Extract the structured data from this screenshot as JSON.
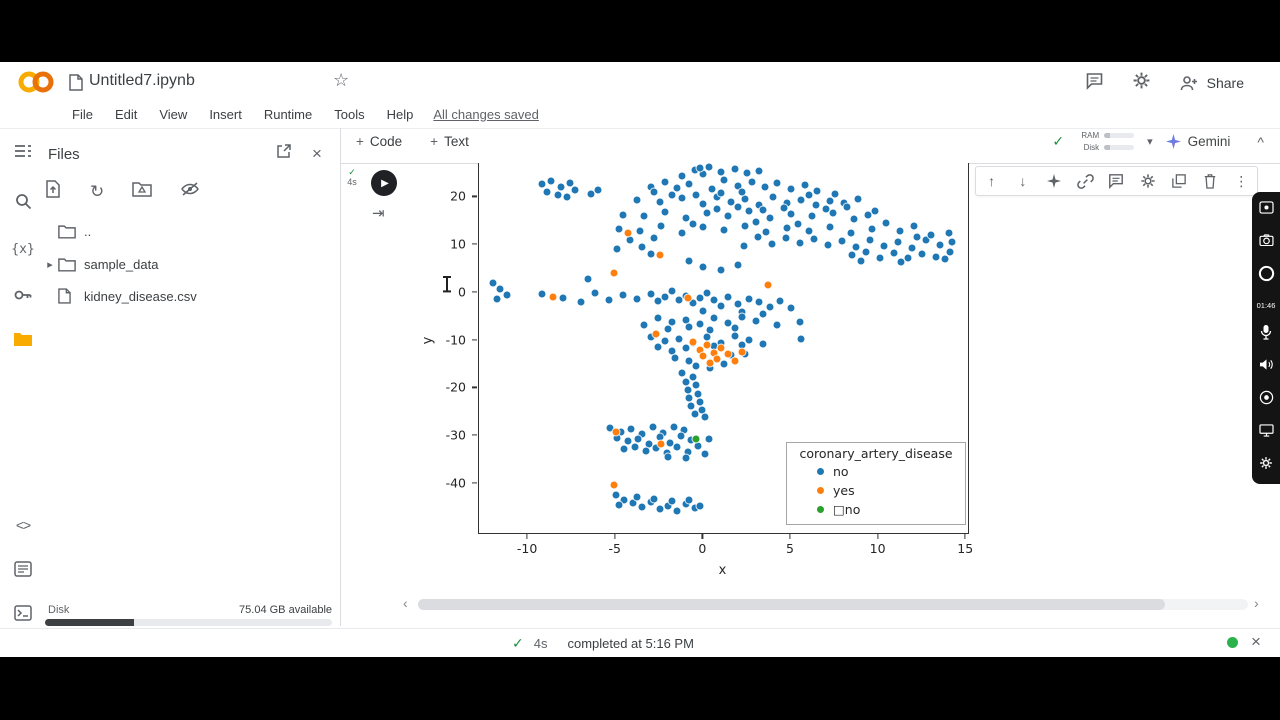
{
  "icons": {
    "play": "▶",
    "star": "☆",
    "check": "✓",
    "caret_down": "▾",
    "caret_up": "^",
    "row_chevron": "▸",
    "more_vert": "⋮",
    "arrow_up": "↑",
    "arrow_down": "↓",
    "close": "×",
    "prev": "‹",
    "next": "›",
    "refresh": "↻",
    "code": "<>",
    "braces": "{x}",
    "output_toggle": "⇥",
    "plus": "+"
  },
  "header": {
    "doc_title": "Untitled7.ipynb",
    "menus": [
      "File",
      "Edit",
      "View",
      "Insert",
      "Runtime",
      "Tools",
      "Help"
    ],
    "changes_saved": "All changes saved",
    "share_label": "Share"
  },
  "toolbar": {
    "add_code": "Code",
    "add_text": "Text",
    "ram": "RAM",
    "disk": "Disk",
    "gemini": "Gemini"
  },
  "sidebar": {
    "files_title": "Files",
    "items": [
      {
        "label": ".."
      },
      {
        "label": "sample_data"
      },
      {
        "label": "kidney_disease.csv"
      }
    ],
    "disk_label": "Disk",
    "disk_available": "75.04 GB available",
    "disk_used_percent": 31
  },
  "cell": {
    "exec_time": "4s"
  },
  "recorder": {
    "elapsed": "01:46"
  },
  "statusbar": {
    "exec_time": "4s",
    "completed_text": "completed at 5:16 PM"
  },
  "chart_data": {
    "type": "scatter",
    "title": "",
    "xlabel": "x",
    "ylabel": "y",
    "xlim": [
      -12.8,
      15.1
    ],
    "ylim": [
      -50.5,
      27.0
    ],
    "xticks": [
      -10,
      -5,
      0,
      5,
      10,
      15
    ],
    "yticks": [
      20,
      10,
      0,
      -10,
      -20,
      -30,
      -40
    ],
    "grid": false,
    "legend": {
      "title": "coronary_artery_disease",
      "position": "lower right",
      "entries": [
        {
          "label": "no",
          "color": "#1f77b4"
        },
        {
          "label": "yes",
          "color": "#ff7f0e"
        },
        {
          "label": "□no",
          "color": "#2ca02c"
        }
      ]
    },
    "series": [
      {
        "name": "no",
        "color": "#1f77b4",
        "points": [
          [
            -9.2,
            22.5
          ],
          [
            -8.7,
            23.2
          ],
          [
            -8.1,
            22
          ],
          [
            -7.6,
            22.8
          ],
          [
            -8.9,
            21
          ],
          [
            -7.3,
            21.3
          ],
          [
            -8.3,
            20.2
          ],
          [
            -7.8,
            19.8
          ],
          [
            -6.4,
            20.5
          ],
          [
            -6,
            21.4
          ],
          [
            -0.5,
            25.5
          ],
          [
            0.3,
            26.2
          ],
          [
            1,
            25.2
          ],
          [
            1.8,
            25.8
          ],
          [
            0,
            24.6
          ],
          [
            2.5,
            24.9
          ],
          [
            -1.2,
            24.2
          ],
          [
            3.2,
            25.3
          ],
          [
            -0.2,
            26
          ],
          [
            -3,
            22
          ],
          [
            -2.2,
            23.1
          ],
          [
            -1.5,
            21.8
          ],
          [
            -0.8,
            22.6
          ],
          [
            0.5,
            21.5
          ],
          [
            1.2,
            23.4
          ],
          [
            2,
            22.2
          ],
          [
            2.8,
            23
          ],
          [
            3.5,
            21.9
          ],
          [
            4.2,
            22.8
          ],
          [
            5,
            21.6
          ],
          [
            5.8,
            22.4
          ],
          [
            6.5,
            21.2
          ],
          [
            -2.8,
            20.9
          ],
          [
            -1.8,
            20.3
          ],
          [
            -3.8,
            19.2
          ],
          [
            -2.5,
            18.8
          ],
          [
            -1.2,
            19.6
          ],
          [
            0,
            18.5
          ],
          [
            0.8,
            19.9
          ],
          [
            1.6,
            18.9
          ],
          [
            2.4,
            19.5
          ],
          [
            3.2,
            18.3
          ],
          [
            4,
            19.8
          ],
          [
            4.8,
            18.7
          ],
          [
            5.6,
            19.3
          ],
          [
            6.4,
            18.2
          ],
          [
            7.2,
            19
          ],
          [
            8,
            18.6
          ],
          [
            8.8,
            19.4
          ],
          [
            -0.4,
            20.4
          ],
          [
            1,
            20.8
          ],
          [
            2.2,
            21
          ],
          [
            6,
            20.2
          ],
          [
            7.5,
            20.6
          ],
          [
            -4.6,
            16.2
          ],
          [
            -3.4,
            15.8
          ],
          [
            -2.2,
            16.8
          ],
          [
            -1,
            15.4
          ],
          [
            0.2,
            16.5
          ],
          [
            1.4,
            15.9
          ],
          [
            2.6,
            16.9
          ],
          [
            3.8,
            15.5
          ],
          [
            5,
            16.4
          ],
          [
            6.2,
            15.8
          ],
          [
            7.4,
            16.6
          ],
          [
            8.6,
            15.3
          ],
          [
            9.4,
            16.1
          ],
          [
            0.8,
            17.4
          ],
          [
            2,
            17.8
          ],
          [
            3.4,
            17.2
          ],
          [
            4.6,
            17.6
          ],
          [
            7,
            17.3
          ],
          [
            8.2,
            17.8
          ],
          [
            9.8,
            17
          ],
          [
            -4.8,
            13.2
          ],
          [
            -3.6,
            12.8
          ],
          [
            -2.4,
            13.8
          ],
          [
            -1.2,
            12.4
          ],
          [
            0,
            13.5
          ],
          [
            1.2,
            12.9
          ],
          [
            2.4,
            13.9
          ],
          [
            3.6,
            12.5
          ],
          [
            4.8,
            13.4
          ],
          [
            6,
            12.8
          ],
          [
            7.2,
            13.6
          ],
          [
            8.4,
            12.3
          ],
          [
            9.6,
            13.1
          ],
          [
            10.4,
            14.4
          ],
          [
            11.2,
            12.8
          ],
          [
            12,
            13.8
          ],
          [
            5.4,
            14.2
          ],
          [
            3,
            14.6
          ],
          [
            -0.6,
            14.3
          ],
          [
            5.5,
            10.2
          ],
          [
            6.3,
            11
          ],
          [
            7.1,
            9.8
          ],
          [
            7.9,
            10.6
          ],
          [
            8.7,
            9.4
          ],
          [
            9.5,
            10.8
          ],
          [
            10.3,
            9.6
          ],
          [
            11.1,
            10.4
          ],
          [
            11.9,
            9.2
          ],
          [
            12.7,
            10.9
          ],
          [
            13.5,
            9.9
          ],
          [
            14.2,
            10.5
          ],
          [
            4.7,
            11.3
          ],
          [
            3.9,
            10.1
          ],
          [
            3.1,
            11.5
          ],
          [
            2.3,
            9.7
          ],
          [
            13,
            12
          ],
          [
            12.2,
            11.4
          ],
          [
            14,
            12.3
          ],
          [
            -4.2,
            10.8
          ],
          [
            -3.5,
            9.5
          ],
          [
            -2.8,
            11.2
          ],
          [
            -4.9,
            8.9
          ],
          [
            8.5,
            7.8
          ],
          [
            9.3,
            8.4
          ],
          [
            10.1,
            7.2
          ],
          [
            10.9,
            8.2
          ],
          [
            11.7,
            7
          ],
          [
            12.5,
            8
          ],
          [
            13.3,
            7.4
          ],
          [
            14.1,
            8.3
          ],
          [
            9,
            6.5
          ],
          [
            11.3,
            6.2
          ],
          [
            13.8,
            6.8
          ],
          [
            -3,
            8
          ],
          [
            0,
            5.2
          ],
          [
            1,
            4.6
          ],
          [
            2,
            5.6
          ],
          [
            -0.8,
            6.4
          ],
          [
            -12,
            1.8
          ],
          [
            -11.6,
            0.6
          ],
          [
            -11.2,
            -0.6
          ],
          [
            -11.8,
            -1.5
          ],
          [
            -9.2,
            -0.4
          ],
          [
            -8,
            -1.3
          ],
          [
            -7,
            -2.2
          ],
          [
            -6.6,
            2.6
          ],
          [
            -6.2,
            -0.2
          ],
          [
            -5.4,
            -1.8
          ],
          [
            -4.6,
            -0.6
          ],
          [
            -3.8,
            -1.4
          ],
          [
            -3,
            -0.4
          ],
          [
            -2.6,
            -2
          ],
          [
            -2.2,
            -1
          ],
          [
            -1.8,
            0.2
          ],
          [
            -1.4,
            -1.6
          ],
          [
            -1,
            -0.8
          ],
          [
            -0.6,
            -2.4
          ],
          [
            -0.2,
            -1.2
          ],
          [
            0.2,
            -0.2
          ],
          [
            0.6,
            -1.8
          ],
          [
            1,
            -3
          ],
          [
            1.4,
            -1
          ],
          [
            2,
            -2.6
          ],
          [
            2.6,
            -1.4
          ],
          [
            3.2,
            -2.2
          ],
          [
            3.8,
            -3.2
          ],
          [
            4.4,
            -2
          ],
          [
            5,
            -3.4
          ],
          [
            2.2,
            -4.2
          ],
          [
            3.4,
            -4.6
          ],
          [
            0,
            -4
          ],
          [
            -2.6,
            -5.5
          ],
          [
            -1.8,
            -6.3
          ],
          [
            -1,
            -5.8
          ],
          [
            -0.2,
            -6.8
          ],
          [
            0.6,
            -5.4
          ],
          [
            1.4,
            -6.6
          ],
          [
            2.2,
            -5.2
          ],
          [
            3,
            -6
          ],
          [
            -3.4,
            -6.9
          ],
          [
            -2,
            -7.8
          ],
          [
            -0.8,
            -7.4
          ],
          [
            0.4,
            -8
          ],
          [
            1.8,
            -7.6
          ],
          [
            4.2,
            -7
          ],
          [
            5.5,
            -6.3
          ],
          [
            -3,
            -9.5
          ],
          [
            -2.2,
            -10.3
          ],
          [
            -1.4,
            -9.8
          ],
          [
            -0.6,
            -10.8
          ],
          [
            0.2,
            -9.4
          ],
          [
            1,
            -10.6
          ],
          [
            1.8,
            -9.2
          ],
          [
            2.6,
            -10
          ],
          [
            -2.6,
            -11.5
          ],
          [
            -1.8,
            -12.3
          ],
          [
            -1,
            -11.8
          ],
          [
            0.6,
            -11.4
          ],
          [
            2.2,
            -11.2
          ],
          [
            -1.6,
            -13.8
          ],
          [
            -0.8,
            -14.4
          ],
          [
            1.6,
            -13.3
          ],
          [
            -0.4,
            -15.5
          ],
          [
            0.4,
            -16
          ],
          [
            1.2,
            -15.2
          ],
          [
            3.4,
            -11
          ],
          [
            2.4,
            -13
          ],
          [
            5.6,
            -9.8
          ],
          [
            -1.2,
            -17
          ],
          [
            -0.6,
            -17.8
          ],
          [
            -1,
            -18.8
          ],
          [
            -0.4,
            -19.6
          ],
          [
            -0.9,
            -20.5
          ],
          [
            -0.3,
            -21.3
          ],
          [
            -0.8,
            -22.2
          ],
          [
            -0.2,
            -23
          ],
          [
            -0.7,
            -24
          ],
          [
            -0.1,
            -24.8
          ],
          [
            -0.5,
            -25.6
          ],
          [
            0.1,
            -26.3
          ],
          [
            -5.3,
            -28.5
          ],
          [
            -4.7,
            -29.3
          ],
          [
            -4.1,
            -28.8
          ],
          [
            -3.5,
            -29.8
          ],
          [
            -2.9,
            -28.4
          ],
          [
            -2.3,
            -29.6
          ],
          [
            -1.7,
            -28.2
          ],
          [
            -1.1,
            -29
          ],
          [
            -4.9,
            -30.5
          ],
          [
            -4.3,
            -31.3
          ],
          [
            -3.7,
            -30.8
          ],
          [
            -3.1,
            -31.8
          ],
          [
            -2.5,
            -30.4
          ],
          [
            -1.9,
            -31.6
          ],
          [
            -1.3,
            -30.2
          ],
          [
            -0.7,
            -31
          ],
          [
            -3.9,
            -32.5
          ],
          [
            -3.3,
            -33.3
          ],
          [
            -2.7,
            -32.8
          ],
          [
            -2.1,
            -33.8
          ],
          [
            -1.5,
            -32.4
          ],
          [
            -0.9,
            -33.6
          ],
          [
            -0.3,
            -32.2
          ],
          [
            0.3,
            -30.8
          ],
          [
            -4.5,
            -33
          ],
          [
            -2,
            -34.5
          ],
          [
            -1,
            -34.8
          ],
          [
            0.1,
            -33.9
          ],
          [
            -5,
            -42.5
          ],
          [
            -4.5,
            -43.5
          ],
          [
            -4,
            -44.3
          ],
          [
            -3.5,
            -45
          ],
          [
            -3,
            -44
          ],
          [
            -2.5,
            -45.5
          ],
          [
            -2,
            -44.8
          ],
          [
            -1.5,
            -45.8
          ],
          [
            -1,
            -44.5
          ],
          [
            -0.5,
            -45.2
          ],
          [
            -3.8,
            -43
          ],
          [
            -2.8,
            -43.4
          ],
          [
            -1.8,
            -43.8
          ],
          [
            -0.8,
            -43.6
          ],
          [
            -4.8,
            -44.6
          ],
          [
            -0.2,
            -44.9
          ]
        ]
      },
      {
        "name": "yes",
        "color": "#ff7f0e",
        "points": [
          [
            -8.6,
            -1
          ],
          [
            -4.3,
            12.3
          ],
          [
            -2.5,
            7.8
          ],
          [
            -5.1,
            4
          ],
          [
            3.7,
            1.5
          ],
          [
            -0.9,
            -1.3
          ],
          [
            -2.7,
            -8.8
          ],
          [
            -0.6,
            -10.5
          ],
          [
            0.2,
            -11.2
          ],
          [
            -0.2,
            -12.2
          ],
          [
            0.6,
            -12.8
          ],
          [
            1,
            -11.8
          ],
          [
            0,
            -13.4
          ],
          [
            0.8,
            -14
          ],
          [
            1.4,
            -13
          ],
          [
            1.8,
            -14.5
          ],
          [
            2.2,
            -12.5
          ],
          [
            0.4,
            -14.8
          ],
          [
            -5,
            -29.3
          ],
          [
            -2.4,
            -31.8
          ],
          [
            -5.1,
            -40.5
          ]
        ]
      },
      {
        "name": "□no",
        "color": "#2ca02c",
        "points": [
          [
            -0.4,
            -30.9
          ]
        ]
      }
    ]
  }
}
